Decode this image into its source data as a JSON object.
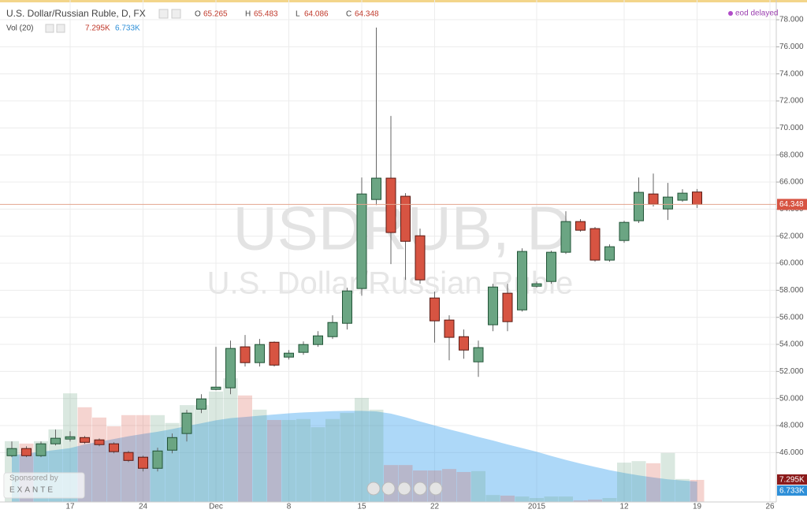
{
  "chart_data": {
    "type": "candlestick",
    "title": "U.S. Dollar/Russian Ruble, D, FX",
    "status": "eod delayed",
    "watermark": "USDRUB, D",
    "watermark_subtitle": "U.S. Dollar/Russian Ruble",
    "sponsor_caption": "Sponsored by",
    "sponsor": "EXANTE",
    "ohlc_letters": [
      "O",
      "H",
      "L",
      "C"
    ],
    "categories": [
      null,
      null,
      null,
      null,
      "17",
      null,
      null,
      null,
      null,
      "24",
      null,
      null,
      null,
      null,
      "Dec",
      null,
      null,
      null,
      null,
      "8",
      null,
      null,
      null,
      null,
      "15",
      null,
      null,
      null,
      null,
      "22",
      null,
      null,
      null,
      null,
      null,
      null,
      "2015",
      null,
      null,
      null,
      null,
      null,
      "12",
      null,
      null,
      null,
      null,
      "19",
      null,
      null,
      null,
      null,
      "26"
    ],
    "open": [
      45.77,
      46.3,
      45.77,
      46.65,
      47.0,
      47.11,
      46.94,
      46.65,
      46.01,
      45.66,
      44.84,
      46.18,
      47.41,
      49.21,
      50.67,
      50.79,
      53.82,
      52.65,
      54.16,
      53.06,
      53.41,
      53.99,
      54.57,
      55.56,
      58.13,
      64.71,
      66.29,
      64.95,
      62.03,
      57.43,
      55.8,
      54.57,
      52.71,
      55.45,
      57.78,
      56.55,
      58.3,
      58.65,
      60.81,
      63.08,
      62.56,
      60.23,
      61.68,
      63.14,
      65.12,
      64.01,
      64.66,
      65.265,
      null,
      null,
      null,
      null,
      null
    ],
    "high": [
      46.82,
      46.47,
      46.82,
      47.7,
      47.58,
      47.23,
      47.05,
      46.76,
      46.12,
      45.77,
      46.36,
      47.41,
      49.16,
      50.32,
      53.82,
      54.28,
      54.69,
      54.4,
      54.22,
      53.58,
      54.22,
      54.98,
      56.15,
      58.19,
      66.34,
      77.42,
      70.89,
      65.18,
      62.56,
      57.9,
      56.15,
      55.1,
      54.28,
      58.48,
      58.48,
      61.1,
      58.65,
      60.93,
      63.84,
      63.26,
      62.68,
      61.39,
      63.14,
      66.34,
      66.63,
      65.94,
      65.47,
      65.483,
      null,
      null,
      null,
      null,
      null
    ],
    "low": [
      45.66,
      45.66,
      45.66,
      46.53,
      46.82,
      46.65,
      46.47,
      45.95,
      45.3,
      44.61,
      44.61,
      45.95,
      46.82,
      48.92,
      50.61,
      50.32,
      52.36,
      52.36,
      52.36,
      52.88,
      53.23,
      53.82,
      54.4,
      55.1,
      57.6,
      64.3,
      59.94,
      58.77,
      58.48,
      54.13,
      52.82,
      52.94,
      51.6,
      54.98,
      54.98,
      56.43,
      58.19,
      58.48,
      60.69,
      62.33,
      60.11,
      60.11,
      61.51,
      62.97,
      64.19,
      63.2,
      64.54,
      64.086,
      null,
      null,
      null,
      null,
      null
    ],
    "close": [
      46.3,
      45.77,
      46.65,
      47.06,
      47.17,
      46.76,
      46.59,
      46.07,
      45.42,
      44.84,
      46.12,
      47.11,
      48.92,
      49.97,
      50.84,
      53.7,
      52.65,
      53.99,
      52.47,
      53.35,
      53.99,
      54.63,
      55.62,
      57.95,
      65.12,
      66.29,
      62.27,
      61.62,
      58.77,
      55.74,
      54.52,
      53.58,
      53.76,
      58.24,
      55.68,
      60.87,
      58.48,
      60.81,
      63.08,
      62.44,
      60.23,
      61.22,
      63.02,
      65.24,
      64.36,
      64.89,
      65.18,
      64.348,
      null,
      null,
      null,
      null,
      null
    ],
    "up_color": "#6ba583",
    "down_color": "#d75442",
    "volume": {
      "name": "Vol (20)",
      "last_label": "7.295K",
      "ma_last_label": "6.733K",
      "ma_color": "#4aa8f0",
      "values": [
        20.1,
        19.3,
        20.1,
        24.0,
        35.9,
        31.3,
        27.9,
        25.0,
        28.7,
        28.7,
        28.7,
        26.1,
        32.0,
        32.0,
        36.5,
        40.9,
        35.2,
        30.5,
        27.1,
        27.1,
        27.4,
        24.7,
        27.4,
        29.4,
        34.4,
        30.5,
        12.2,
        12.2,
        10.4,
        10.4,
        10.9,
        9.9,
        10.2,
        2.3,
        2.1,
        1.8,
        1.3,
        1.8,
        1.8,
        0.5,
        0.8,
        1.3,
        13.0,
        13.5,
        12.8,
        16.2,
        7.6,
        7.295,
        null,
        null,
        null,
        null,
        null
      ],
      "ma": [
        15.4,
        16.0,
        16.6,
        17.2,
        17.8,
        19.0,
        19.9,
        20.8,
        21.7,
        22.5,
        23.2,
        24.1,
        25.1,
        26.0,
        27.0,
        27.7,
        28.1,
        28.5,
        28.9,
        29.3,
        29.6,
        29.8,
        30.0,
        30.1,
        30.1,
        29.9,
        29.2,
        28.0,
        26.6,
        25.3,
        24.0,
        22.8,
        21.5,
        20.3,
        19.0,
        17.8,
        16.6,
        15.2,
        13.9,
        12.7,
        11.6,
        10.5,
        9.6,
        8.8,
        8.1,
        7.5,
        7.1,
        6.733,
        null,
        null,
        null,
        null,
        null
      ]
    },
    "ylim": [
      42.35,
      79.46
    ],
    "yticks": [
      {
        "value": 46,
        "label": "46.000"
      },
      {
        "value": 48,
        "label": "48.000"
      },
      {
        "value": 50,
        "label": "50.000"
      },
      {
        "value": 52,
        "label": "52.000"
      },
      {
        "value": 54,
        "label": "54.000"
      },
      {
        "value": 56,
        "label": "56.000"
      },
      {
        "value": 58,
        "label": "58.000"
      },
      {
        "value": 60,
        "label": "60.000"
      },
      {
        "value": 62,
        "label": "62.000"
      },
      {
        "value": 64,
        "label": "64.000"
      },
      {
        "value": 66,
        "label": "66.000"
      },
      {
        "value": 68,
        "label": "68.000"
      },
      {
        "value": 70,
        "label": "70.000"
      },
      {
        "value": 72,
        "label": "72.000"
      },
      {
        "value": 74,
        "label": "74.000"
      },
      {
        "value": 76,
        "label": "76.000"
      },
      {
        "value": 78,
        "label": "78.000"
      }
    ],
    "grid": true
  }
}
